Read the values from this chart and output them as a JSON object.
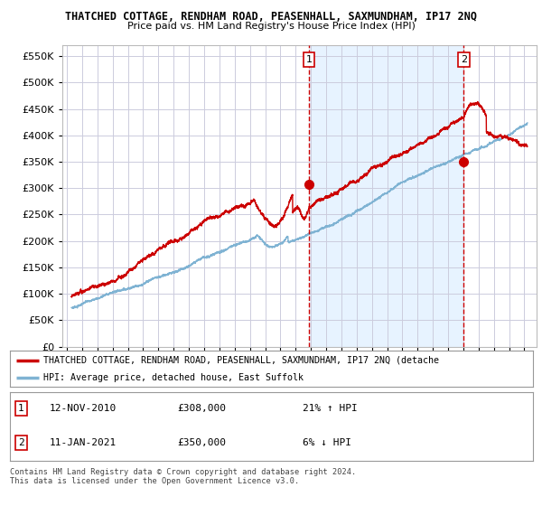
{
  "title": "THATCHED COTTAGE, RENDHAM ROAD, PEASENHALL, SAXMUNDHAM, IP17 2NQ",
  "subtitle": "Price paid vs. HM Land Registry's House Price Index (HPI)",
  "ytick_values": [
    0,
    50000,
    100000,
    150000,
    200000,
    250000,
    300000,
    350000,
    400000,
    450000,
    500000,
    550000
  ],
  "ylim": [
    0,
    570000
  ],
  "hpi_color": "#7fb3d3",
  "price_color": "#cc0000",
  "sale1_x": 2010.87,
  "sale1_y": 308000,
  "sale2_x": 2021.03,
  "sale2_y": 350000,
  "annotation1_date": "12-NOV-2010",
  "annotation1_price": "£308,000",
  "annotation1_hpi": "21% ↑ HPI",
  "annotation2_date": "11-JAN-2021",
  "annotation2_price": "£350,000",
  "annotation2_hpi": "6% ↓ HPI",
  "legend_line1": "THATCHED COTTAGE, RENDHAM ROAD, PEASENHALL, SAXMUNDHAM, IP17 2NQ (detache",
  "legend_line2": "HPI: Average price, detached house, East Suffolk",
  "footer": "Contains HM Land Registry data © Crown copyright and database right 2024.\nThis data is licensed under the Open Government Licence v3.0.",
  "bg_color": "#ffffff",
  "plot_bg_color": "#ffffff",
  "shade_color": "#ddeeff",
  "grid_color": "#ccccdd",
  "dashed_line_color": "#cc0000",
  "xlim_left": 1994.7,
  "xlim_right": 2025.8
}
